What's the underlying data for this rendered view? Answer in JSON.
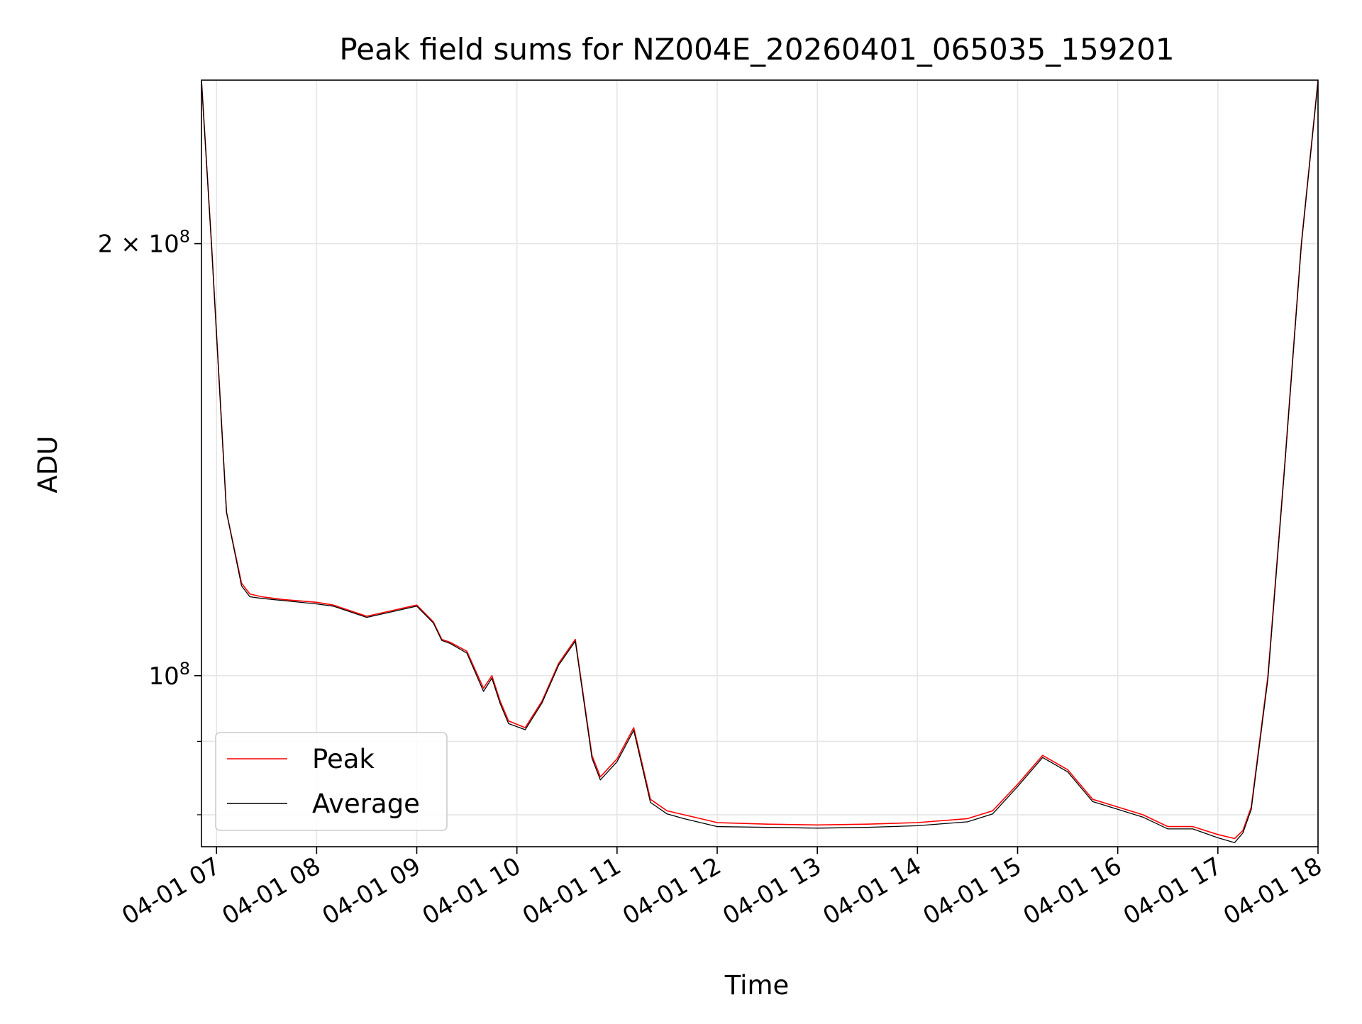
{
  "chart_data": {
    "type": "line",
    "title": "Peak field sums for NZ004E_20260401_065035_159201",
    "xlabel": "Time",
    "ylabel": "ADU",
    "y_scale": "log",
    "grid": true,
    "legend_position": "lower-left",
    "xlim": [
      "04-01 06:51",
      "04-01 18:00"
    ],
    "ylim": [
      76000000,
      260000000
    ],
    "x_ticks": [
      "04-01 07",
      "04-01 08",
      "04-01 09",
      "04-01 10",
      "04-01 11",
      "04-01 12",
      "04-01 13",
      "04-01 14",
      "04-01 15",
      "04-01 16",
      "04-01 17",
      "04-01 18"
    ],
    "y_ticks": [
      {
        "value": 100000000,
        "label": "10⁸",
        "base": "10",
        "exp": "8"
      },
      {
        "value": 200000000,
        "label": "2 × 10⁸",
        "base": "2 × 10",
        "exp": "8"
      }
    ],
    "x": [
      "04-01 06:51",
      "04-01 06:57",
      "04-01 07:06",
      "04-01 07:15",
      "04-01 07:20",
      "04-01 07:27",
      "04-01 07:40",
      "04-01 08:00",
      "04-01 08:10",
      "04-01 08:30",
      "04-01 08:45",
      "04-01 09:00",
      "04-01 09:10",
      "04-01 09:15",
      "04-01 09:20",
      "04-01 09:30",
      "04-01 09:40",
      "04-01 09:45",
      "04-01 09:50",
      "04-01 09:55",
      "04-01 10:05",
      "04-01 10:15",
      "04-01 10:25",
      "04-01 10:35",
      "04-01 10:45",
      "04-01 10:50",
      "04-01 11:00",
      "04-01 11:10",
      "04-01 11:20",
      "04-01 11:30",
      "04-01 11:40",
      "04-01 11:50",
      "04-01 12:00",
      "04-01 12:30",
      "04-01 13:00",
      "04-01 13:30",
      "04-01 14:00",
      "04-01 14:30",
      "04-01 14:45",
      "04-01 15:00",
      "04-01 15:15",
      "04-01 15:30",
      "04-01 15:45",
      "04-01 16:00",
      "04-01 16:15",
      "04-01 16:30",
      "04-01 16:45",
      "04-01 17:00",
      "04-01 17:10",
      "04-01 17:15",
      "04-01 17:20",
      "04-01 17:30",
      "04-01 17:40",
      "04-01 17:50",
      "04-01 18:00"
    ],
    "series": [
      {
        "name": "Peak",
        "color": "#ff0000",
        "values": [
          260000000,
          200000000,
          130000000,
          116000000,
          114000000,
          113500000,
          113000000,
          112500000,
          112000000,
          110000000,
          111000000,
          112000000,
          109000000,
          106000000,
          105500000,
          104000000,
          98000000,
          100000000,
          96000000,
          93000000,
          92000000,
          96000000,
          102000000,
          106000000,
          88000000,
          85000000,
          87500000,
          92000000,
          82000000,
          80500000,
          80000000,
          79500000,
          79000000,
          78800000,
          78700000,
          78800000,
          79000000,
          79500000,
          80500000,
          84000000,
          88000000,
          86000000,
          82000000,
          81000000,
          80000000,
          78500000,
          78500000,
          77500000,
          77000000,
          78000000,
          81000000,
          100000000,
          140000000,
          200000000,
          260000000
        ]
      },
      {
        "name": "Average",
        "color": "#000000",
        "values": [
          260000000,
          200000000,
          130000000,
          115500000,
          113500000,
          113200000,
          112800000,
          112200000,
          111800000,
          109800000,
          110800000,
          111800000,
          108800000,
          105800000,
          105300000,
          103700000,
          97500000,
          99600000,
          95600000,
          92600000,
          91700000,
          95700000,
          101700000,
          105700000,
          87600000,
          84600000,
          87100000,
          91600000,
          81600000,
          80100000,
          79500000,
          79000000,
          78500000,
          78400000,
          78300000,
          78400000,
          78600000,
          79100000,
          80100000,
          83700000,
          87700000,
          85700000,
          81700000,
          80700000,
          79700000,
          78200000,
          78200000,
          77100000,
          76500000,
          77700000,
          80700000,
          99500000,
          139500000,
          199500000,
          259500000
        ]
      }
    ]
  }
}
